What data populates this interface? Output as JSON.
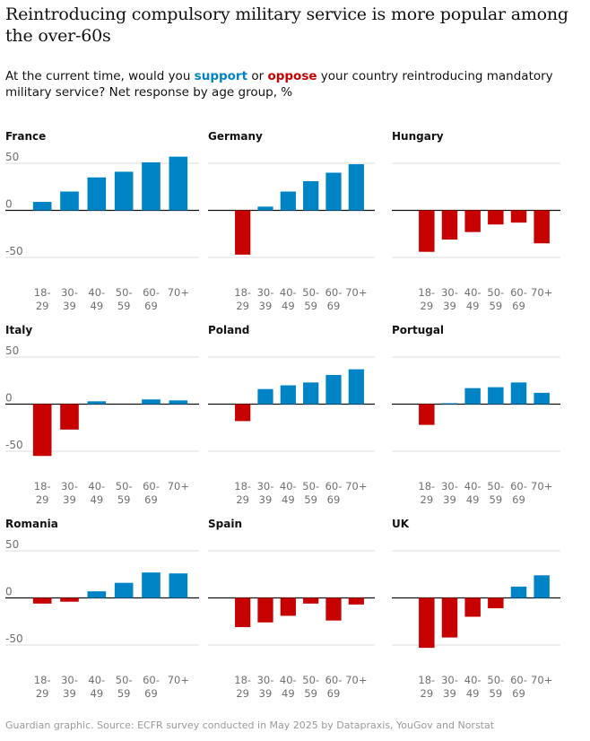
{
  "header": {
    "title": "Reintroducing compulsory military service is more popular among the over-60s",
    "subtitle_pre": "At the current time, would you ",
    "support_word": "support",
    "subtitle_mid": " or ",
    "oppose_word": "oppose",
    "subtitle_post": " your country reintroducing mandatory military service? Net response by age group, %"
  },
  "footer": {
    "source": "Guardian graphic. Source: ECFR survey conducted in May 2025 by Datapraxis, YouGov and Norstat"
  },
  "colors": {
    "support": "#0084c6",
    "oppose": "#c70000",
    "grid": "#dcdcdc",
    "zero_line": "#121212",
    "tick_text": "#707070"
  },
  "chart_data": [
    {
      "type": "bar",
      "title": "France",
      "categories": [
        "18-29",
        "30-39",
        "40-49",
        "50-59",
        "60-69",
        "70+"
      ],
      "values": [
        9,
        20,
        35,
        41,
        51,
        57
      ],
      "ylim": [
        -50,
        50
      ],
      "yticks": [
        50,
        0,
        -50
      ]
    },
    {
      "type": "bar",
      "title": "Germany",
      "categories": [
        "18-29",
        "30-39",
        "40-49",
        "50-59",
        "60-69",
        "70+"
      ],
      "values": [
        -47,
        4,
        20,
        31,
        40,
        49
      ],
      "ylim": [
        -50,
        50
      ],
      "yticks": [
        50,
        0,
        -50
      ]
    },
    {
      "type": "bar",
      "title": "Hungary",
      "categories": [
        "18-29",
        "30-39",
        "40-49",
        "50-59",
        "60-69",
        "70+"
      ],
      "values": [
        -44,
        -31,
        -23,
        -15,
        -13,
        -35
      ],
      "ylim": [
        -50,
        50
      ],
      "yticks": [
        50,
        0,
        -50
      ]
    },
    {
      "type": "bar",
      "title": "Italy",
      "categories": [
        "18-29",
        "30-39",
        "40-49",
        "50-59",
        "60-69",
        "70+"
      ],
      "values": [
        -55,
        -27,
        3,
        0,
        5,
        4
      ],
      "ylim": [
        -50,
        50
      ],
      "yticks": [
        50,
        0,
        -50
      ]
    },
    {
      "type": "bar",
      "title": "Poland",
      "categories": [
        "18-29",
        "30-39",
        "40-49",
        "50-59",
        "60-69",
        "70+"
      ],
      "values": [
        -18,
        16,
        20,
        23,
        31,
        37
      ],
      "ylim": [
        -50,
        50
      ],
      "yticks": [
        50,
        0,
        -50
      ]
    },
    {
      "type": "bar",
      "title": "Portugal",
      "categories": [
        "18-29",
        "30-39",
        "40-49",
        "50-59",
        "60-69",
        "70+"
      ],
      "values": [
        -22,
        1,
        17,
        18,
        23,
        12
      ],
      "ylim": [
        -50,
        50
      ],
      "yticks": [
        50,
        0,
        -50
      ]
    },
    {
      "type": "bar",
      "title": "Romania",
      "categories": [
        "18-29",
        "30-39",
        "40-49",
        "50-59",
        "60-69",
        "70+"
      ],
      "values": [
        -6,
        -4,
        7,
        16,
        27,
        26
      ],
      "ylim": [
        -50,
        50
      ],
      "yticks": [
        50,
        0,
        -50
      ]
    },
    {
      "type": "bar",
      "title": "Spain",
      "categories": [
        "18-29",
        "30-39",
        "40-49",
        "50-59",
        "60-69",
        "70+"
      ],
      "values": [
        -31,
        -26,
        -19,
        -6,
        -24,
        -7
      ],
      "ylim": [
        -50,
        50
      ],
      "yticks": [
        50,
        0,
        -50
      ]
    },
    {
      "type": "bar",
      "title": "UK",
      "categories": [
        "18-29",
        "30-39",
        "40-49",
        "50-59",
        "60-69",
        "70+"
      ],
      "values": [
        -53,
        -42,
        -20,
        -11,
        12,
        24
      ],
      "ylim": [
        -50,
        50
      ],
      "yticks": [
        50,
        0,
        -50
      ]
    }
  ]
}
